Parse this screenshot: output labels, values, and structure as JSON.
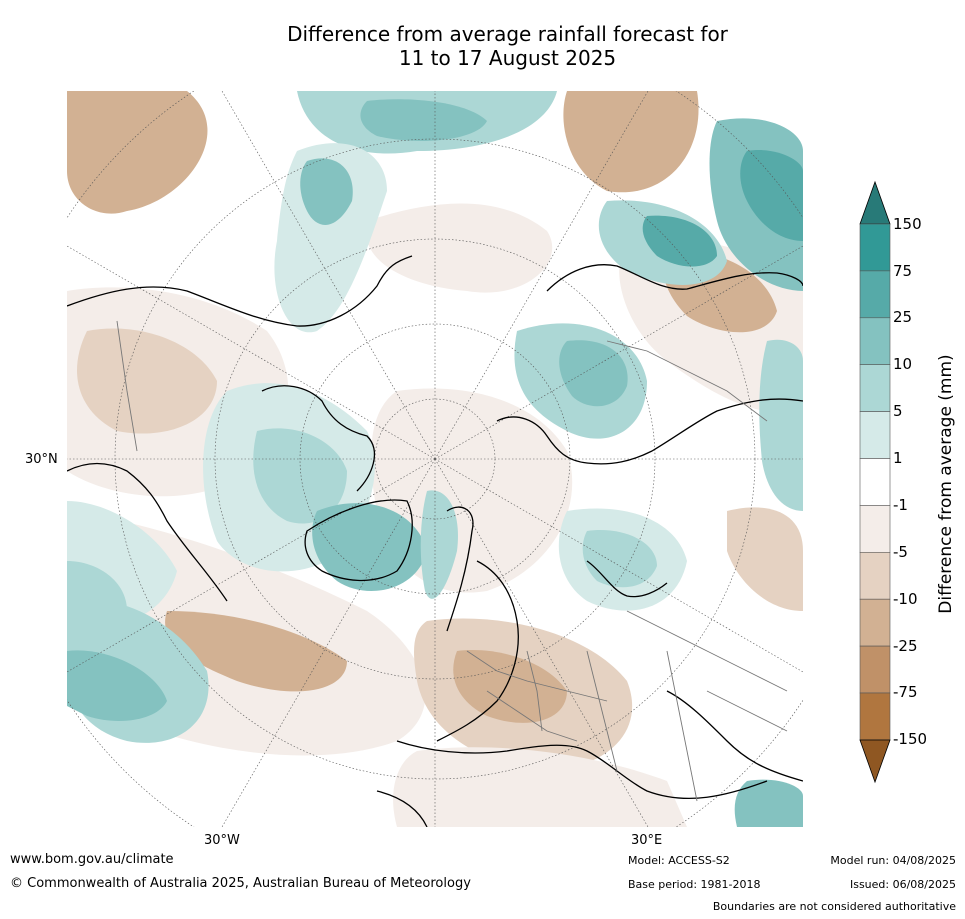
{
  "title": {
    "line1": "Difference from average rainfall forecast for",
    "line2": "11 to 17 August 2025"
  },
  "map": {
    "projection": "north polar stereographic",
    "lon_labels": [
      "30°W",
      "30°E"
    ],
    "lat_labels": [
      "30°N"
    ],
    "legend_title": "Difference from average (mm)"
  },
  "legend": {
    "tick_labels": [
      "150",
      "75",
      "25",
      "10",
      "5",
      "1",
      "-1",
      "-5",
      "-10",
      "-25",
      "-75",
      "-150"
    ],
    "bins": [
      {
        "range": ">150",
        "color": "#287a78"
      },
      {
        "range": "75 to 150",
        "color": "#319996"
      },
      {
        "range": "25 to 75",
        "color": "#56aaa8"
      },
      {
        "range": "10 to 25",
        "color": "#84c2c0"
      },
      {
        "range": "5 to 10",
        "color": "#acd7d5"
      },
      {
        "range": "1 to 5",
        "color": "#d5eae8"
      },
      {
        "range": "-1 to 1",
        "color": "#ffffff"
      },
      {
        "range": "-5 to -1",
        "color": "#f4ede9"
      },
      {
        "range": "-10 to -5",
        "color": "#e5d2c2"
      },
      {
        "range": "-25 to -10",
        "color": "#d2b193"
      },
      {
        "range": "-75 to -25",
        "color": "#c09168"
      },
      {
        "range": "-150 to -75",
        "color": "#b0763f"
      },
      {
        "range": "<-150",
        "color": "#8f5722"
      }
    ]
  },
  "footer": {
    "url": "www.bom.gov.au/climate",
    "copyright": "© Commonwealth of Australia 2025, Australian Bureau of Meteorology",
    "model": "Model: ACCESS-S2",
    "base_period": "Base period: 1981-2018",
    "model_run": "Model run: 04/08/2025",
    "issued": "Issued: 06/08/2025",
    "disclaimer": "Boundaries are not considered authoritative"
  }
}
